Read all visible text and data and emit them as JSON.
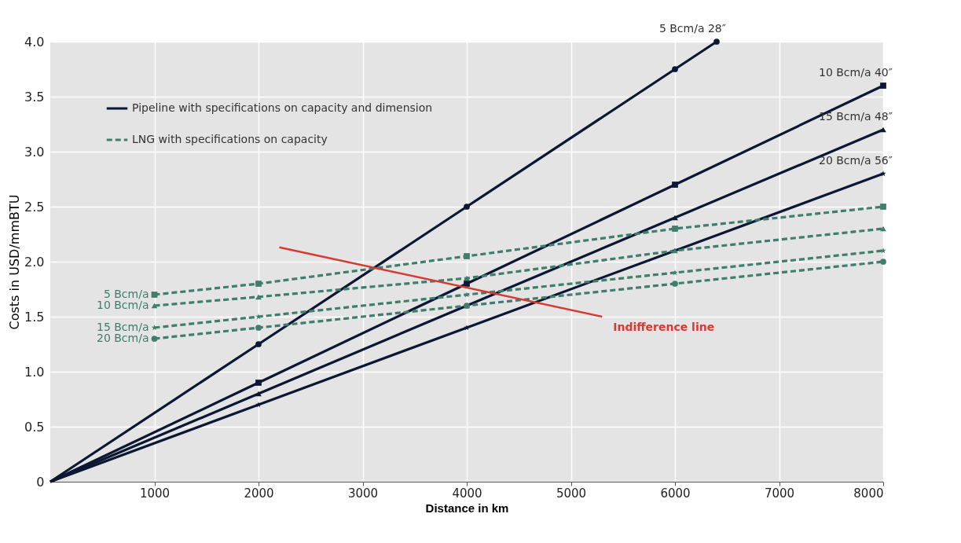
{
  "chart_data": {
    "type": "line",
    "xlabel": "Distance in km",
    "ylabel": "Costs in USD/mmBTU",
    "xlim": [
      0,
      8000
    ],
    "xticks": [
      1000,
      2000,
      3000,
      4000,
      5000,
      6000,
      7000,
      8000
    ],
    "ylim": [
      0,
      4.0
    ],
    "yticks": [
      0,
      0.5,
      {
        "value": 1,
        "label": "1.0"
      },
      1.5,
      {
        "value": 2,
        "label": "2.0"
      },
      2.5,
      {
        "value": 3,
        "label": "3.0"
      },
      3.5,
      {
        "value": 4,
        "label": "4.0"
      }
    ],
    "grid": true,
    "legend": "top left",
    "annotations": [
      "Pipeline with specifications on capacity and dimension",
      "LNG with specifications on capacity"
    ],
    "series": [
      {
        "name": "5 Bcm/a 28″",
        "color": "#0b1733",
        "line_style": "solid",
        "marker": "circle",
        "x": [
          0,
          2000,
          4000,
          6000,
          6400
        ],
        "values": [
          0,
          1.25,
          2.5,
          3.75,
          4.0
        ]
      },
      {
        "name": "10 Bcm/a 40″",
        "color": "#0b1733",
        "line_style": "solid",
        "marker": "square",
        "x": [
          0,
          2000,
          4000,
          6000,
          8000
        ],
        "values": [
          0,
          0.9,
          1.8,
          2.7,
          3.6
        ]
      },
      {
        "name": "15 Bcm/a 48″",
        "color": "#0b1733",
        "line_style": "solid",
        "marker": "triangle",
        "x": [
          0,
          2000,
          4000,
          6000,
          8000
        ],
        "values": [
          0,
          0.8,
          1.6,
          2.4,
          3.2
        ]
      },
      {
        "name": "20 Bcm/a 56″",
        "color": "#0b1733",
        "line_style": "solid",
        "marker": "star",
        "x": [
          0,
          2000,
          4000,
          6000,
          8000
        ],
        "values": [
          0,
          0.7,
          1.4,
          2.1,
          2.8
        ]
      },
      {
        "name": "5 Bcm/a",
        "color": "#3f7d6c",
        "line_style": "dashed",
        "marker": "square",
        "x": [
          1000,
          2000,
          4000,
          6000,
          8000
        ],
        "values": [
          1.7,
          1.8,
          2.05,
          2.3,
          2.5
        ]
      },
      {
        "name": "10 Bcm/a",
        "color": "#3f7d6c",
        "line_style": "dashed",
        "marker": "triangle",
        "x": [
          1000,
          2000,
          4000,
          6000,
          8000
        ],
        "values": [
          1.6,
          1.68,
          1.85,
          2.1,
          2.3
        ]
      },
      {
        "name": "15 Bcm/a",
        "color": "#3f7d6c",
        "line_style": "dashed",
        "marker": "star",
        "x": [
          1000,
          2000,
          4000,
          6000,
          8000
        ],
        "values": [
          1.4,
          1.5,
          1.7,
          1.9,
          2.1
        ]
      },
      {
        "name": "20 Bcm/a",
        "color": "#3f7d6c",
        "line_style": "dashed",
        "marker": "circle",
        "x": [
          1000,
          2000,
          4000,
          6000,
          8000
        ],
        "values": [
          1.3,
          1.4,
          1.6,
          1.8,
          2.0
        ]
      },
      {
        "name": "Indifference line",
        "color": "#d63a34",
        "line_style": "solid",
        "marker": "none",
        "x": [
          2200,
          5300
        ],
        "values": [
          2.13,
          1.5
        ]
      }
    ]
  }
}
